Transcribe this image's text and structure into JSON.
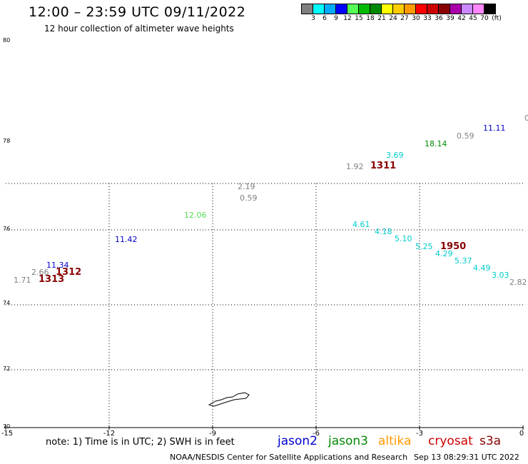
{
  "header": {
    "title": "12:00 – 23:59 UTC 09/11/2022",
    "subtitle": "12 hour collection of altimeter wave heights"
  },
  "color_scale": {
    "colors": [
      "#808080",
      "#00ffff",
      "#00aaff",
      "#0000ff",
      "#55ff55",
      "#00bb00",
      "#008800",
      "#ffff00",
      "#ffcc00",
      "#ff9900",
      "#ff0000",
      "#cc0000",
      "#880000",
      "#aa00aa",
      "#cc88ff",
      "#ff88ff",
      "#000000"
    ],
    "labels": [
      "3",
      "6",
      "9",
      "12",
      "15",
      "18",
      "21",
      "24",
      "27",
      "30",
      "33",
      "36",
      "39",
      "42",
      "45",
      "70",
      "(ft)"
    ]
  },
  "axes": {
    "lat_labels": [
      "80",
      "78",
      "76",
      "74",
      "72",
      "70"
    ],
    "lon_labels": [
      "-15",
      "-12",
      "-9",
      "-6",
      "-3",
      "0"
    ]
  },
  "observations": [
    {
      "text": "0",
      "color": "#808080"
    },
    {
      "text": "11.11",
      "color": "#0000cc"
    },
    {
      "text": "0.59",
      "color": "#808080"
    },
    {
      "text": "18.14",
      "color": "#008800"
    },
    {
      "text": "3.69",
      "color": "#00cccc"
    },
    {
      "text": "1.92",
      "color": "#808080"
    },
    {
      "text": "1311",
      "color": "#880000"
    },
    {
      "text": "2.19",
      "color": "#808080"
    },
    {
      "text": "0.59",
      "color": "#808080"
    },
    {
      "text": "12.06",
      "color": "#55dd55"
    },
    {
      "text": "11.42",
      "color": "#0000cc"
    },
    {
      "text": "11.34",
      "color": "#0000cc"
    },
    {
      "text": "2.66",
      "color": "#808080"
    },
    {
      "text": "1312",
      "color": "#880000"
    },
    {
      "text": "1.71",
      "color": "#808080"
    },
    {
      "text": "1313",
      "color": "#880000"
    },
    {
      "text": "4.61",
      "color": "#00cccc"
    },
    {
      "text": "4.18",
      "color": "#00cccc"
    },
    {
      "text": "5.10",
      "color": "#00cccc"
    },
    {
      "text": "5.25",
      "color": "#00cccc"
    },
    {
      "text": "1950",
      "color": "#880000"
    },
    {
      "text": "4.29",
      "color": "#00cccc"
    },
    {
      "text": "5.37",
      "color": "#00cccc"
    },
    {
      "text": "4.49",
      "color": "#00cccc"
    },
    {
      "text": "3.03",
      "color": "#00cccc"
    },
    {
      "text": "2.82",
      "color": "#808080"
    }
  ],
  "footer": {
    "note": "note: 1) Time is in UTC; 2) SWH is in feet",
    "satellites": [
      {
        "name": "jason2",
        "color": "#0000cc"
      },
      {
        "name": "jason3",
        "color": "#008800"
      },
      {
        "name": "altika",
        "color": "#ff9900"
      },
      {
        "name": "cryosat",
        "color": "#cc0000"
      },
      {
        "name": "s3a",
        "color": "#880000"
      }
    ],
    "credit": "NOAA/NESDIS Center for Satellite Applications and Research",
    "timestamp": "Sep 13 08:29:31 UTC 2022"
  }
}
